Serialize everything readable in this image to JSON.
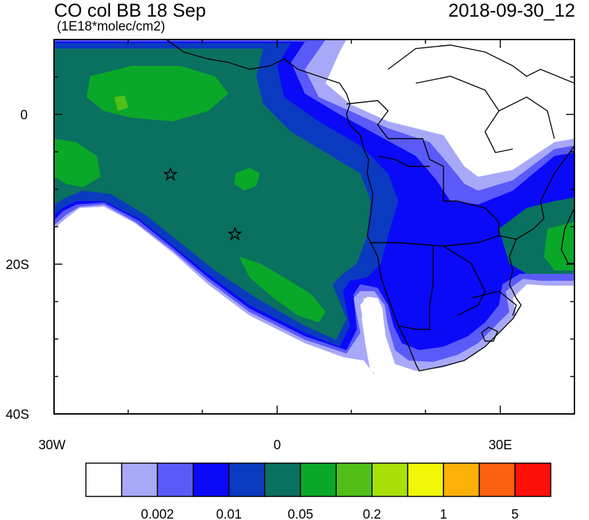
{
  "header": {
    "title": "CO col BB 18 Sep",
    "units": "(1E18*molec/cm2)",
    "datetime": "2018-09-30_12"
  },
  "axes": {
    "lat_ticks": [
      {
        "label": "0",
        "value": 0
      },
      {
        "label": "20S",
        "value": -20
      },
      {
        "label": "40S",
        "value": -40
      }
    ],
    "lon_ticks": [
      {
        "label": "30W",
        "value": -30
      },
      {
        "label": "0",
        "value": 0
      },
      {
        "label": "30E",
        "value": 30
      }
    ],
    "lat_range": [
      -40,
      10
    ],
    "lon_range": [
      -30,
      40
    ]
  },
  "markers": [
    {
      "name": "star",
      "lon": -14.3,
      "lat": -8.0
    },
    {
      "name": "star",
      "lon": -5.7,
      "lat": -16.0
    }
  ],
  "colorbar": {
    "colors": [
      "#ffffff",
      "#a8a8f8",
      "#5a5af8",
      "#0a0af8",
      "#0a3ac0",
      "#0a7060",
      "#0aa828",
      "#50c018",
      "#a8e008",
      "#f0f808",
      "#fcb008",
      "#fc6010",
      "#fc1008"
    ],
    "tick_labels": [
      "0.002",
      "0.01",
      "0.05",
      "0.2",
      "1",
      "5"
    ]
  },
  "palette": {
    "light_blue": "#a8a8f8",
    "mid_blue": "#5a5af8",
    "blue": "#0a0af8",
    "dark_blue": "#0a3ac0",
    "teal": "#0a7060",
    "green": "#0aa828",
    "bright_green": "#50c018"
  }
}
